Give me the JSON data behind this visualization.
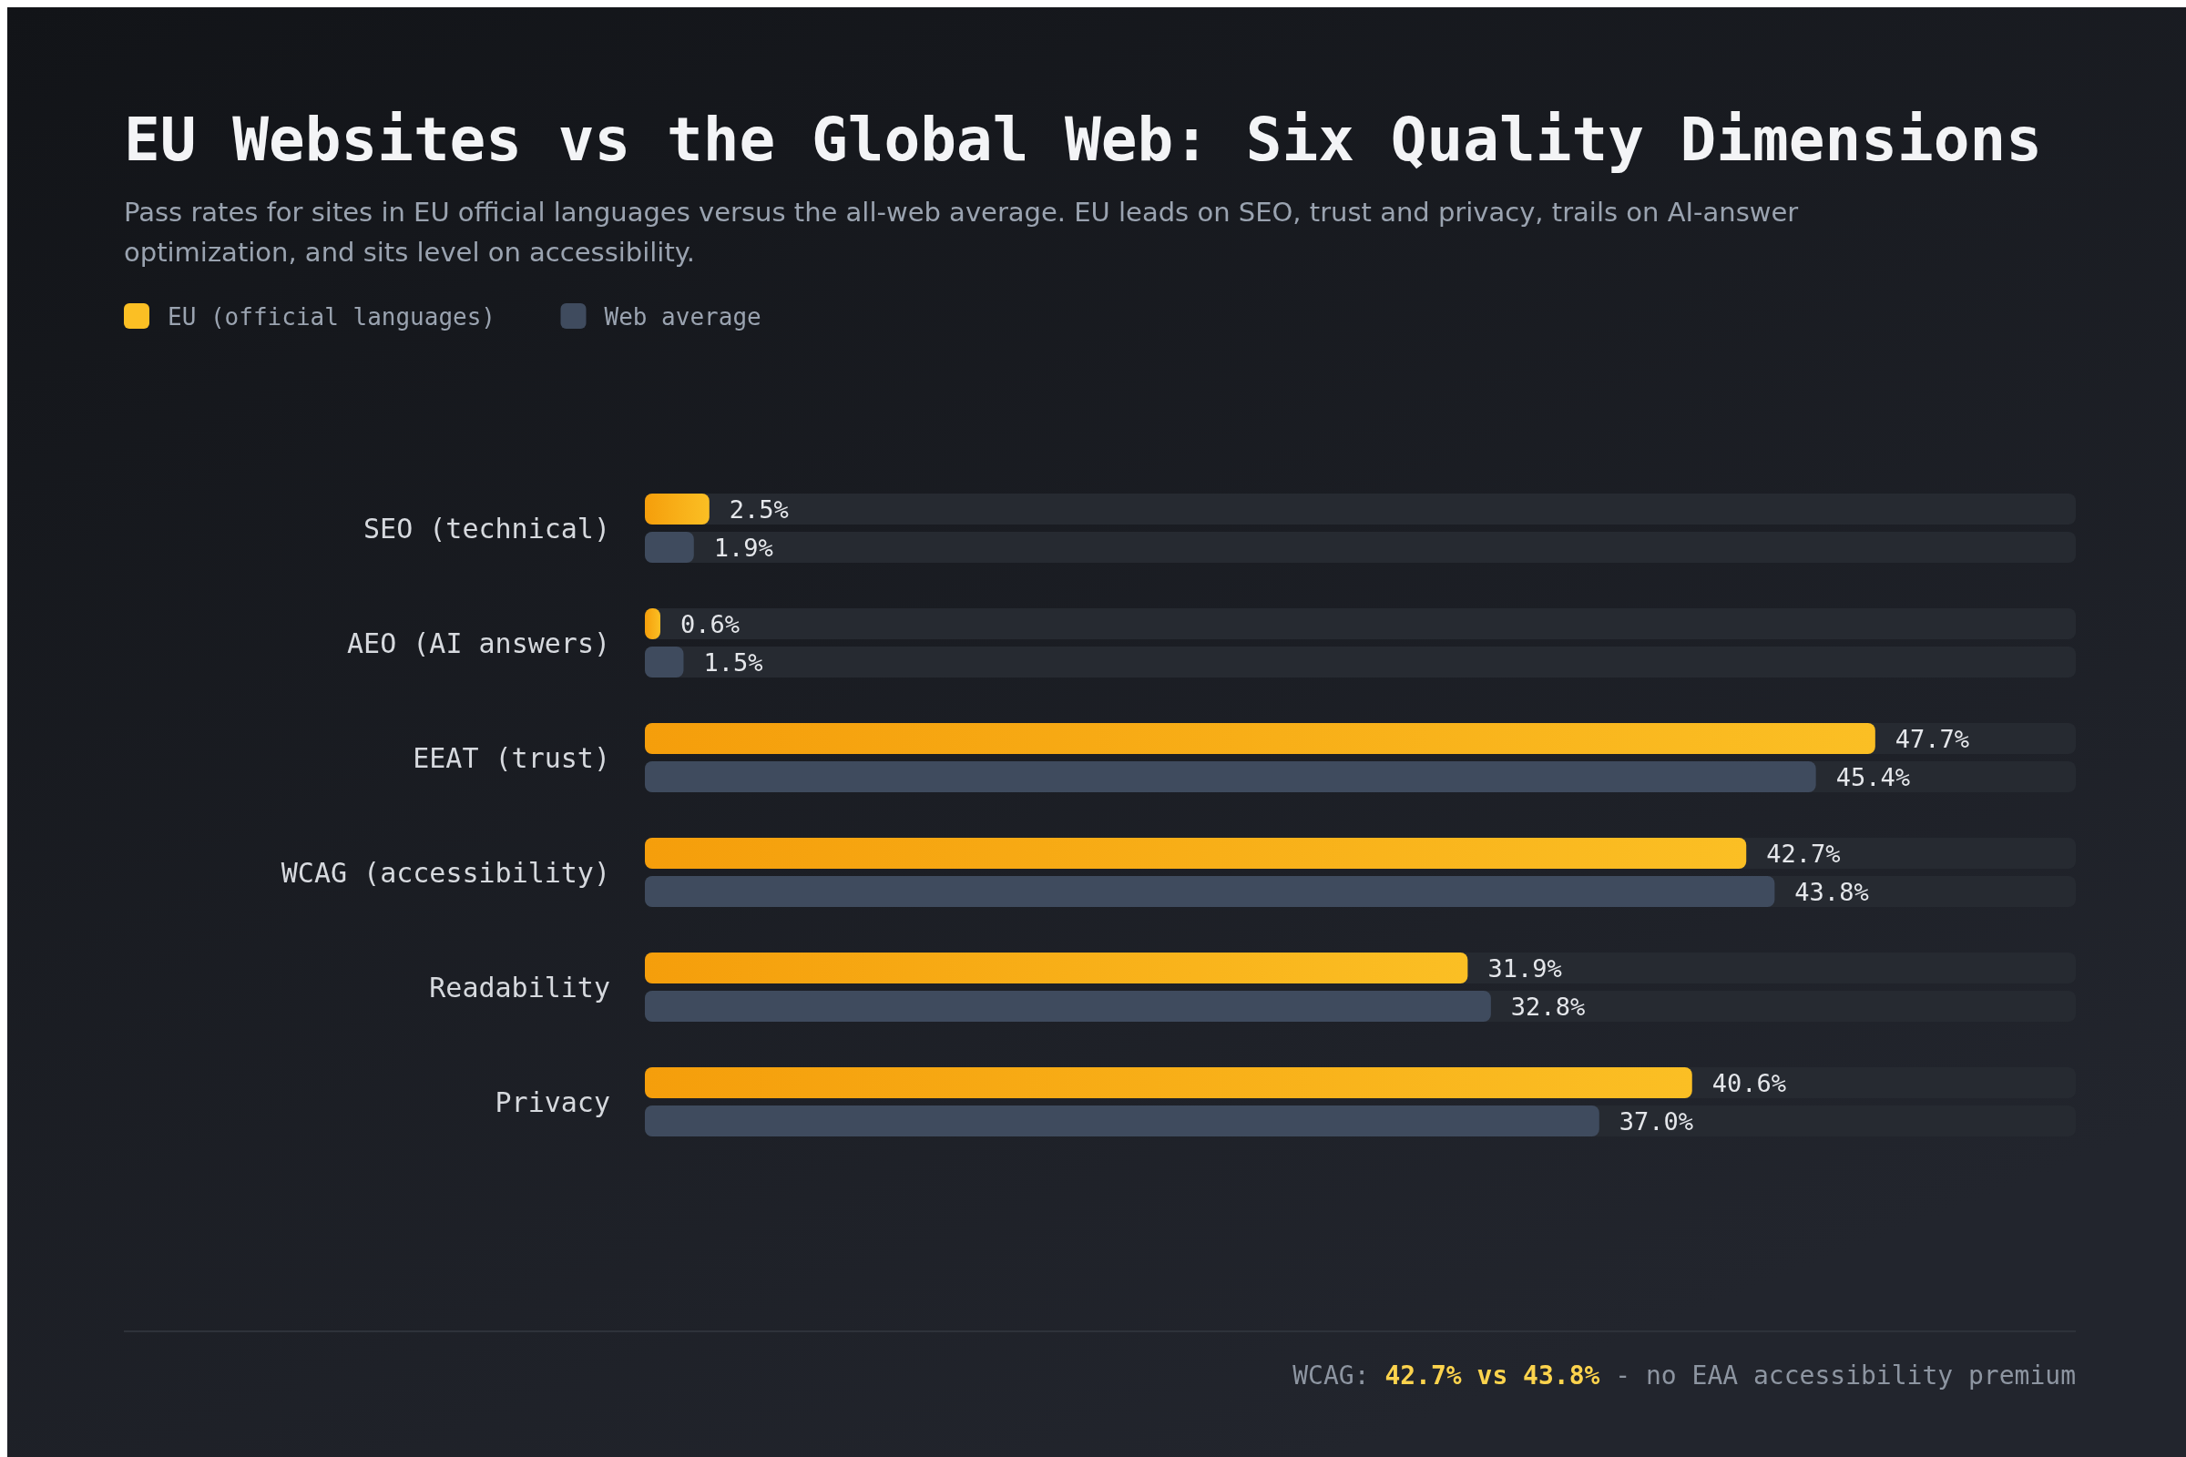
{
  "chart_data": {
    "type": "bar",
    "orientation": "horizontal",
    "title": "EU Websites vs the Global Web: Six Quality Dimensions",
    "subtitle": "Pass rates for sites in EU official languages versus the all-web average. EU leads on SEO, trust and privacy, trails on AI-answer optimization, and sits level on accessibility.",
    "categories": [
      "SEO (technical)",
      "AEO (AI answers)",
      "EEAT (trust)",
      "WCAG (accessibility)",
      "Readability",
      "Privacy"
    ],
    "series": [
      {
        "name": "EU (official languages)",
        "color": "#fbbf24",
        "values": [
          2.5,
          0.6,
          47.7,
          42.7,
          31.9,
          40.6
        ],
        "value_labels": [
          "2.5%",
          "0.6%",
          "47.7%",
          "42.7%",
          "31.9%",
          "40.6%"
        ]
      },
      {
        "name": "Web average",
        "color": "#3f4b5e",
        "values": [
          1.9,
          1.5,
          45.4,
          43.8,
          32.8,
          37.0
        ],
        "value_labels": [
          "1.9%",
          "1.5%",
          "45.4%",
          "43.8%",
          "32.8%",
          "37.0%"
        ]
      }
    ],
    "tick_labels": "y",
    "legend": "top left",
    "annotations": [
      "WCAG: 42.7% vs 43.8% - no EAA accessibility premium"
    ]
  }
}
